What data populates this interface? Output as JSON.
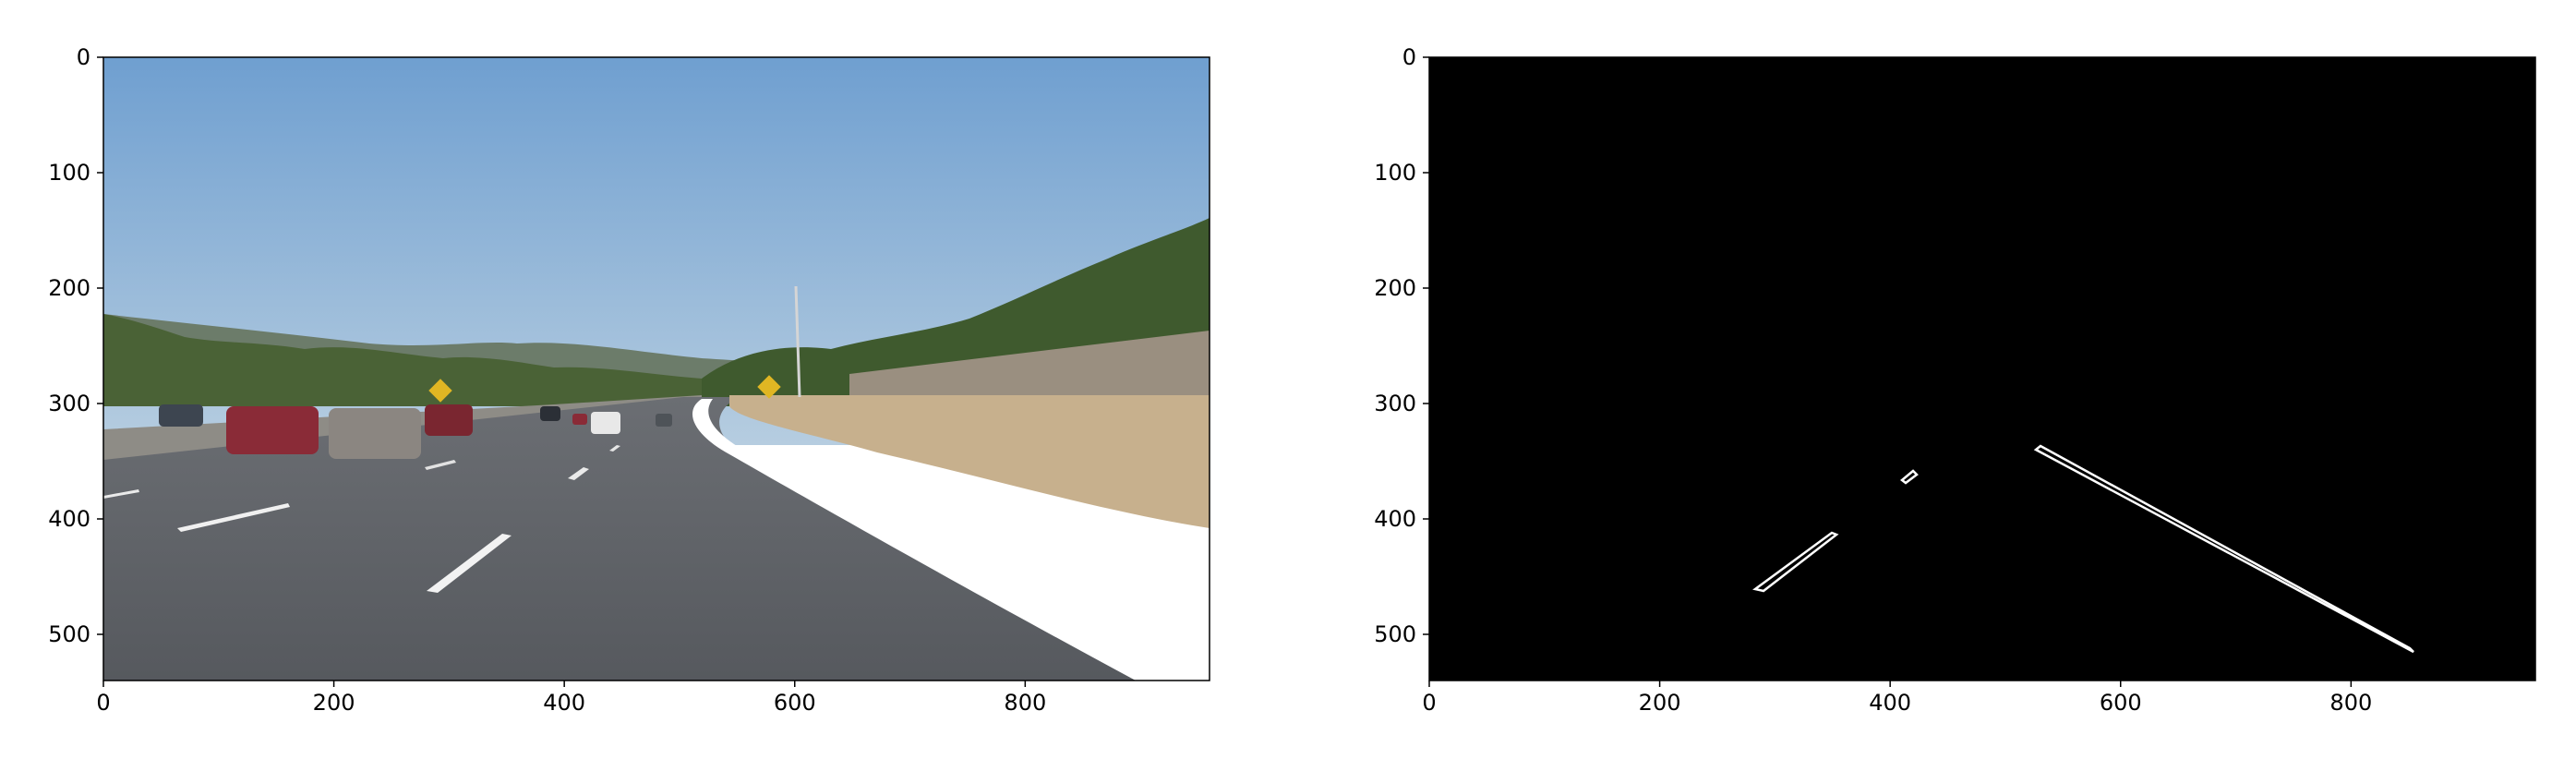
{
  "colors": {
    "sky_top": "#6f9fd0",
    "sky_bottom": "#b6cde0",
    "road": "#56595e",
    "grass": "#c7b08d",
    "trees": "#4a6236",
    "lane_white": "#ffffff",
    "edge_background": "#000000",
    "edge_line": "#ffffff",
    "axis": "#000000"
  },
  "panels": [
    {
      "name": "original-road-image",
      "image_content": "highway road scene with cars and lane markings",
      "x_ticks": [
        "0",
        "200",
        "400",
        "600",
        "800"
      ],
      "y_ticks": [
        "0",
        "100",
        "200",
        "300",
        "400",
        "500"
      ],
      "xlim": [
        0,
        960
      ],
      "ylim": [
        540,
        0
      ]
    },
    {
      "name": "lane-edge-image",
      "image_content": "black image with white lane-line edges",
      "x_ticks": [
        "0",
        "200",
        "400",
        "600",
        "800"
      ],
      "y_ticks": [
        "0",
        "100",
        "200",
        "300",
        "400",
        "500"
      ],
      "xlim": [
        0,
        960
      ],
      "ylim": [
        540,
        0
      ]
    }
  ]
}
